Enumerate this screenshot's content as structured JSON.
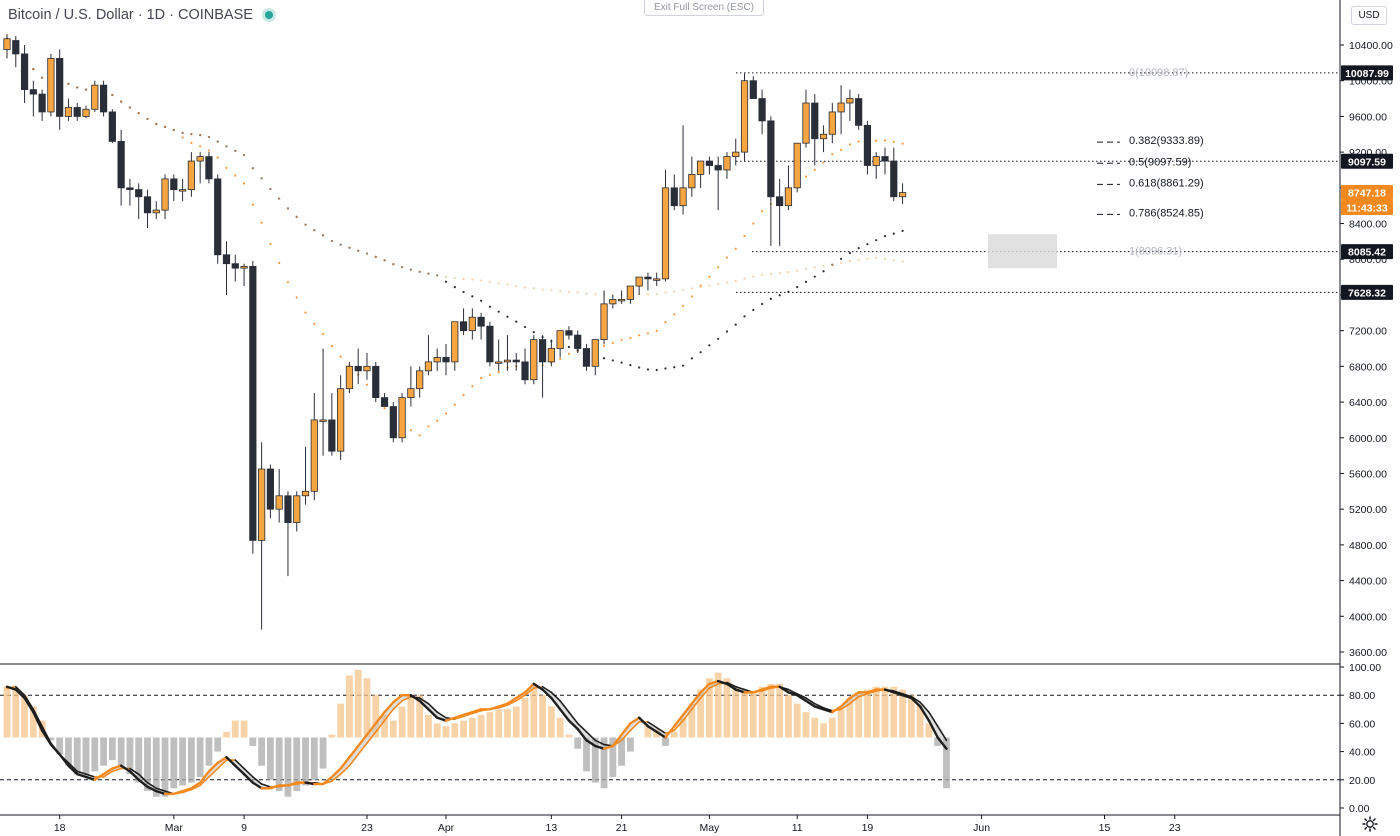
{
  "header": {
    "symbol": "Bitcoin / U.S. Dollar · 1D · COINBASE",
    "exit_fullscreen": "Exit Full Screen (ESC)",
    "currency_button": "USD"
  },
  "colors": {
    "up_candle": "#f7a541",
    "down_candle": "#2a2e39",
    "accent": "#f48a1f",
    "grid": "#e0e3eb"
  },
  "chart_data": {
    "type": "candlestick",
    "main_pane": {
      "ylim": [
        3500,
        10700
      ],
      "y_ticks": [
        "10400.00",
        "10000.00",
        "9600.00",
        "9200.00",
        "8800.00",
        "8400.00",
        "8000.00",
        "7600.00",
        "7200.00",
        "6800.00",
        "6400.00",
        "6000.00",
        "5600.00",
        "5200.00",
        "4800.00",
        "4400.00",
        "4000.00",
        "3600.00"
      ],
      "x_ticks": [
        {
          "label": "18",
          "index": 6
        },
        {
          "label": "Mar",
          "index": 19
        },
        {
          "label": "9",
          "index": 27
        },
        {
          "label": "23",
          "index": 41
        },
        {
          "label": "Apr",
          "index": 50
        },
        {
          "label": "13",
          "index": 62
        },
        {
          "label": "21",
          "index": 70
        },
        {
          "label": "May",
          "index": 80
        },
        {
          "label": "11",
          "index": 90
        },
        {
          "label": "19",
          "index": 98
        },
        {
          "label": "Jun",
          "index": 111
        },
        {
          "label": "15",
          "index": 125
        },
        {
          "label": "23",
          "index": 133
        }
      ],
      "candles": [
        {
          "o": 10350,
          "h": 10520,
          "l": 10250,
          "c": 10470
        },
        {
          "o": 10450,
          "h": 10500,
          "l": 10150,
          "c": 10300
        },
        {
          "o": 10300,
          "h": 10400,
          "l": 9750,
          "c": 9900
        },
        {
          "o": 9900,
          "h": 10000,
          "l": 9600,
          "c": 9850
        },
        {
          "o": 9850,
          "h": 9900,
          "l": 9550,
          "c": 9650
        },
        {
          "o": 9650,
          "h": 10300,
          "l": 9600,
          "c": 10250
        },
        {
          "o": 10250,
          "h": 10350,
          "l": 9450,
          "c": 9600
        },
        {
          "o": 9600,
          "h": 9800,
          "l": 9550,
          "c": 9700
        },
        {
          "o": 9700,
          "h": 9750,
          "l": 9550,
          "c": 9600
        },
        {
          "o": 9600,
          "h": 9720,
          "l": 9580,
          "c": 9680
        },
        {
          "o": 9680,
          "h": 10000,
          "l": 9650,
          "c": 9950
        },
        {
          "o": 9950,
          "h": 10000,
          "l": 9600,
          "c": 9650
        },
        {
          "o": 9650,
          "h": 9680,
          "l": 9300,
          "c": 9320
        },
        {
          "o": 9320,
          "h": 9450,
          "l": 8600,
          "c": 8800
        },
        {
          "o": 8800,
          "h": 8900,
          "l": 8600,
          "c": 8780
        },
        {
          "o": 8780,
          "h": 8850,
          "l": 8450,
          "c": 8700
        },
        {
          "o": 8700,
          "h": 8780,
          "l": 8350,
          "c": 8520
        },
        {
          "o": 8520,
          "h": 8650,
          "l": 8450,
          "c": 8550
        },
        {
          "o": 8550,
          "h": 8950,
          "l": 8450,
          "c": 8900
        },
        {
          "o": 8900,
          "h": 8950,
          "l": 8650,
          "c": 8780
        },
        {
          "o": 8780,
          "h": 8900,
          "l": 8650,
          "c": 8780
        },
        {
          "o": 8780,
          "h": 9200,
          "l": 8700,
          "c": 9100
        },
        {
          "o": 9100,
          "h": 9200,
          "l": 8850,
          "c": 9150
        },
        {
          "o": 9150,
          "h": 9200,
          "l": 8850,
          "c": 8900
        },
        {
          "o": 8900,
          "h": 8950,
          "l": 7950,
          "c": 8050
        },
        {
          "o": 8050,
          "h": 8200,
          "l": 7600,
          "c": 7950
        },
        {
          "o": 7950,
          "h": 8050,
          "l": 7750,
          "c": 7900
        },
        {
          "o": 7900,
          "h": 7950,
          "l": 7700,
          "c": 7920
        },
        {
          "o": 7920,
          "h": 7980,
          "l": 4700,
          "c": 4850
        },
        {
          "o": 4850,
          "h": 5950,
          "l": 3850,
          "c": 5650
        },
        {
          "o": 5650,
          "h": 5700,
          "l": 5100,
          "c": 5200
        },
        {
          "o": 5200,
          "h": 5650,
          "l": 5050,
          "c": 5350
        },
        {
          "o": 5350,
          "h": 5400,
          "l": 4450,
          "c": 5050
        },
        {
          "o": 5050,
          "h": 5400,
          "l": 4950,
          "c": 5350
        },
        {
          "o": 5350,
          "h": 5900,
          "l": 5250,
          "c": 5400
        },
        {
          "o": 5400,
          "h": 6500,
          "l": 5300,
          "c": 6200
        },
        {
          "o": 6200,
          "h": 7000,
          "l": 5800,
          "c": 6200
        },
        {
          "o": 6200,
          "h": 6500,
          "l": 5800,
          "c": 5850
        },
        {
          "o": 5850,
          "h": 6700,
          "l": 5750,
          "c": 6550
        },
        {
          "o": 6550,
          "h": 6850,
          "l": 6500,
          "c": 6800
        },
        {
          "o": 6800,
          "h": 7000,
          "l": 6600,
          "c": 6750
        },
        {
          "o": 6750,
          "h": 6950,
          "l": 6650,
          "c": 6800
        },
        {
          "o": 6800,
          "h": 6850,
          "l": 6400,
          "c": 6450
        },
        {
          "o": 6450,
          "h": 6500,
          "l": 6350,
          "c": 6350
        },
        {
          "o": 6350,
          "h": 6400,
          "l": 5950,
          "c": 6000
        },
        {
          "o": 6000,
          "h": 6500,
          "l": 5950,
          "c": 6450
        },
        {
          "o": 6450,
          "h": 6800,
          "l": 6350,
          "c": 6550
        },
        {
          "o": 6550,
          "h": 6800,
          "l": 6450,
          "c": 6750
        },
        {
          "o": 6750,
          "h": 7150,
          "l": 6700,
          "c": 6850
        },
        {
          "o": 6850,
          "h": 7000,
          "l": 6750,
          "c": 6900
        },
        {
          "o": 6900,
          "h": 7050,
          "l": 6700,
          "c": 6850
        },
        {
          "o": 6850,
          "h": 7300,
          "l": 6750,
          "c": 7300
        },
        {
          "o": 7300,
          "h": 7450,
          "l": 7150,
          "c": 7200
        },
        {
          "o": 7200,
          "h": 7450,
          "l": 7100,
          "c": 7350
        },
        {
          "o": 7350,
          "h": 7400,
          "l": 7100,
          "c": 7250
        },
        {
          "o": 7250,
          "h": 7300,
          "l": 6800,
          "c": 6850
        },
        {
          "o": 6850,
          "h": 7100,
          "l": 6750,
          "c": 6850
        },
        {
          "o": 6850,
          "h": 7150,
          "l": 6750,
          "c": 6870
        },
        {
          "o": 6870,
          "h": 6950,
          "l": 6750,
          "c": 6850
        },
        {
          "o": 6850,
          "h": 7000,
          "l": 6600,
          "c": 6650
        },
        {
          "o": 6650,
          "h": 7150,
          "l": 6600,
          "c": 7100
        },
        {
          "o": 7100,
          "h": 7150,
          "l": 6450,
          "c": 6850
        },
        {
          "o": 6850,
          "h": 7100,
          "l": 6800,
          "c": 7000
        },
        {
          "o": 7000,
          "h": 7200,
          "l": 6900,
          "c": 7200
        },
        {
          "o": 7200,
          "h": 7250,
          "l": 7100,
          "c": 7150
        },
        {
          "o": 7150,
          "h": 7200,
          "l": 6950,
          "c": 7000
        },
        {
          "o": 7000,
          "h": 7050,
          "l": 6750,
          "c": 6800
        },
        {
          "o": 6800,
          "h": 7100,
          "l": 6700,
          "c": 7100
        },
        {
          "o": 7100,
          "h": 7650,
          "l": 7050,
          "c": 7500
        },
        {
          "o": 7500,
          "h": 7600,
          "l": 7450,
          "c": 7550
        },
        {
          "o": 7550,
          "h": 7650,
          "l": 7500,
          "c": 7550
        },
        {
          "o": 7550,
          "h": 7700,
          "l": 7500,
          "c": 7700
        },
        {
          "o": 7700,
          "h": 7800,
          "l": 7600,
          "c": 7800
        },
        {
          "o": 7800,
          "h": 7850,
          "l": 7650,
          "c": 7780
        },
        {
          "o": 7780,
          "h": 7850,
          "l": 7700,
          "c": 7780
        },
        {
          "o": 7780,
          "h": 9000,
          "l": 7750,
          "c": 8800
        },
        {
          "o": 8800,
          "h": 8950,
          "l": 8550,
          "c": 8600
        },
        {
          "o": 8600,
          "h": 9500,
          "l": 8500,
          "c": 8800
        },
        {
          "o": 8800,
          "h": 9150,
          "l": 8700,
          "c": 8950
        },
        {
          "o": 8950,
          "h": 9100,
          "l": 8800,
          "c": 9100
        },
        {
          "o": 9100,
          "h": 9150,
          "l": 8950,
          "c": 9050
        },
        {
          "o": 9050,
          "h": 9150,
          "l": 8550,
          "c": 9000
        },
        {
          "o": 9000,
          "h": 9200,
          "l": 8900,
          "c": 9150
        },
        {
          "o": 9150,
          "h": 9350,
          "l": 9050,
          "c": 9200
        },
        {
          "o": 9200,
          "h": 10080,
          "l": 9100,
          "c": 10000
        },
        {
          "o": 10000,
          "h": 10050,
          "l": 9800,
          "c": 9800
        },
        {
          "o": 9800,
          "h": 9900,
          "l": 9400,
          "c": 9550
        },
        {
          "o": 9550,
          "h": 9600,
          "l": 8150,
          "c": 8700
        },
        {
          "o": 8700,
          "h": 8900,
          "l": 8150,
          "c": 8600
        },
        {
          "o": 8600,
          "h": 9050,
          "l": 8550,
          "c": 8800
        },
        {
          "o": 8800,
          "h": 9300,
          "l": 8750,
          "c": 9300
        },
        {
          "o": 9300,
          "h": 9900,
          "l": 9250,
          "c": 9750
        },
        {
          "o": 9750,
          "h": 9850,
          "l": 9050,
          "c": 9350
        },
        {
          "o": 9350,
          "h": 9500,
          "l": 9200,
          "c": 9400
        },
        {
          "o": 9400,
          "h": 9750,
          "l": 9300,
          "c": 9650
        },
        {
          "o": 9650,
          "h": 9950,
          "l": 9400,
          "c": 9750
        },
        {
          "o": 9750,
          "h": 9900,
          "l": 9550,
          "c": 9800
        },
        {
          "o": 9800,
          "h": 9850,
          "l": 9450,
          "c": 9500
        },
        {
          "o": 9500,
          "h": 9550,
          "l": 8950,
          "c": 9050
        },
        {
          "o": 9050,
          "h": 9200,
          "l": 8900,
          "c": 9150
        },
        {
          "o": 9150,
          "h": 9250,
          "l": 8950,
          "c": 9100
        },
        {
          "o": 9100,
          "h": 9250,
          "l": 8650,
          "c": 8700
        },
        {
          "o": 8700,
          "h": 8850,
          "l": 8620,
          "c": 8747
        }
      ],
      "fib_levels": [
        {
          "label": "0(10098.87)",
          "value": 10098.87,
          "faded": true
        },
        {
          "label": "0.382(9333.89)",
          "value": 9333.89,
          "faded": false
        },
        {
          "label": "0.5(9097.59)",
          "value": 9097.59,
          "faded": false
        },
        {
          "label": "0.618(8861.29)",
          "value": 8861.29,
          "faded": false
        },
        {
          "label": "0.786(8524.85)",
          "value": 8524.85,
          "faded": false
        },
        {
          "label": "1(8096.31)",
          "value": 8096.31,
          "faded": true
        }
      ],
      "horizontal_lines": [
        10087.99,
        9097.59,
        8085.42,
        7628.32
      ],
      "price_labels": [
        {
          "text": "10087.99",
          "value": 10087.99,
          "style": "dark"
        },
        {
          "text": "9097.59",
          "value": 9097.59,
          "style": "dark"
        },
        {
          "text": "8747.18",
          "value": 8747.18,
          "style": "orange"
        },
        {
          "text": "11:43:33",
          "value": 8580,
          "style": "orange"
        },
        {
          "text": "8085.42",
          "value": 8085.42,
          "style": "dark"
        },
        {
          "text": "7628.32",
          "value": 7628.32,
          "style": "dark"
        }
      ],
      "zone_box": {
        "from_index": 109,
        "to_index": 116,
        "top": 8280,
        "bottom": 7900
      }
    },
    "oscillator_pane": {
      "ylim": [
        -2,
        102
      ],
      "y_ticks": [
        "100.00",
        "80.00",
        "60.00",
        "40.00",
        "20.00",
        "0.00"
      ],
      "levels": [
        80,
        20
      ],
      "midline": 50,
      "k_line": [
        86,
        84,
        78,
        68,
        55,
        45,
        38,
        30,
        24,
        22,
        20,
        24,
        28,
        30,
        26,
        20,
        15,
        12,
        10,
        10,
        12,
        14,
        18,
        26,
        32,
        36,
        30,
        24,
        18,
        14,
        14,
        16,
        16,
        18,
        18,
        17,
        17,
        22,
        28,
        36,
        44,
        52,
        60,
        68,
        75,
        80,
        80,
        76,
        70,
        64,
        62,
        64,
        66,
        68,
        70,
        70,
        72,
        74,
        78,
        82,
        88,
        84,
        78,
        70,
        62,
        56,
        48,
        44,
        42,
        44,
        52,
        60,
        64,
        58,
        54,
        50,
        58,
        66,
        74,
        82,
        88,
        90,
        88,
        84,
        82,
        82,
        84,
        86,
        86,
        82,
        80,
        76,
        72,
        70,
        68,
        72,
        78,
        82,
        82,
        84,
        84,
        82,
        80,
        78,
        72,
        62,
        50,
        42
      ],
      "d_line": [
        85,
        86,
        80,
        70,
        58,
        46,
        38,
        32,
        26,
        24,
        22,
        22,
        26,
        28,
        28,
        24,
        18,
        14,
        12,
        10,
        11,
        13,
        16,
        22,
        28,
        34,
        34,
        28,
        22,
        17,
        15,
        15,
        16,
        17,
        18,
        18,
        17,
        19,
        24,
        30,
        38,
        46,
        54,
        62,
        70,
        76,
        79,
        78,
        74,
        68,
        64,
        63,
        65,
        67,
        69,
        70,
        71,
        73,
        76,
        80,
        85,
        86,
        82,
        76,
        68,
        60,
        54,
        48,
        45,
        44,
        48,
        55,
        61,
        61,
        57,
        53,
        55,
        62,
        70,
        78,
        85,
        88,
        89,
        86,
        84,
        82,
        83,
        85,
        86,
        84,
        81,
        78,
        74,
        71,
        69,
        70,
        74,
        79,
        81,
        83,
        84,
        83,
        81,
        79,
        75,
        68,
        58,
        48
      ],
      "histogram": [
        86,
        84,
        80,
        72,
        62,
        48,
        38,
        30,
        24,
        22,
        26,
        30,
        34,
        30,
        24,
        18,
        12,
        8,
        8,
        14,
        16,
        18,
        22,
        30,
        40,
        54,
        62,
        62,
        44,
        30,
        20,
        12,
        8,
        12,
        16,
        20,
        28,
        52,
        74,
        94,
        98,
        92,
        80,
        66,
        62,
        72,
        80,
        80,
        66,
        60,
        58,
        60,
        62,
        64,
        66,
        68,
        70,
        70,
        72,
        78,
        88,
        80,
        72,
        64,
        52,
        42,
        26,
        18,
        14,
        22,
        30,
        40,
        50,
        58,
        56,
        44,
        54,
        64,
        74,
        84,
        92,
        96,
        92,
        86,
        84,
        82,
        86,
        88,
        88,
        80,
        74,
        68,
        64,
        60,
        64,
        70,
        78,
        82,
        84,
        86,
        86,
        86,
        84,
        80,
        74,
        60,
        44,
        14
      ]
    }
  }
}
